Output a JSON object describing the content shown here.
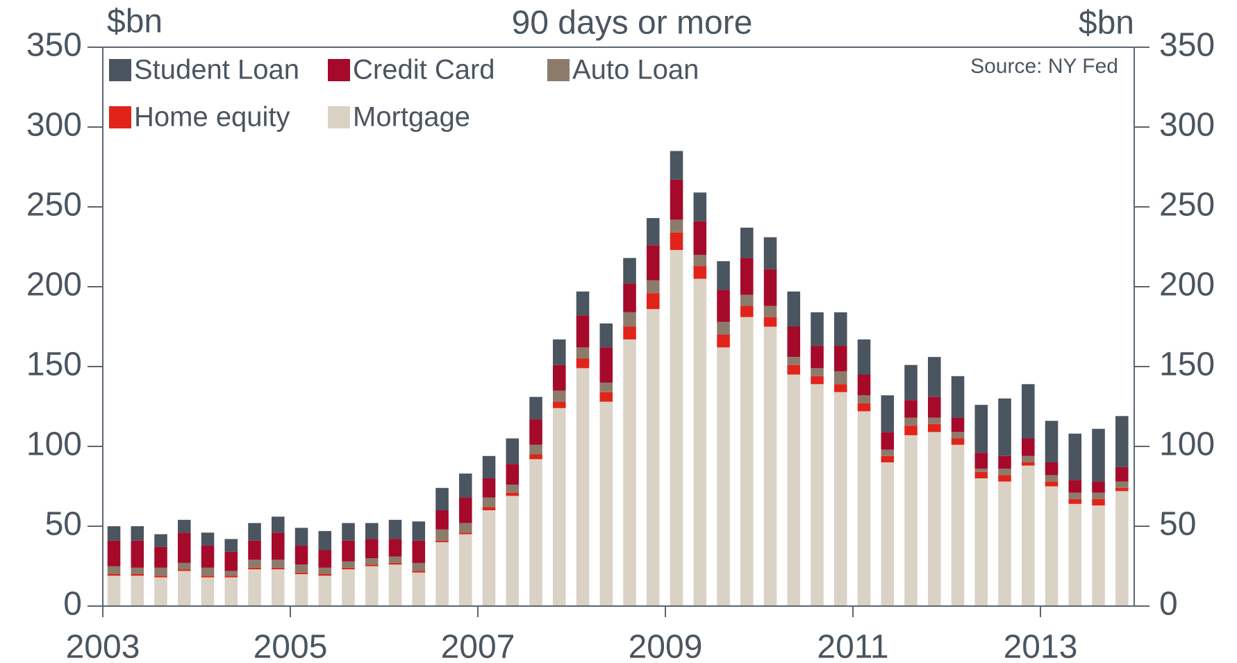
{
  "chart_data": {
    "type": "stacked_bar",
    "title": "90 days or more",
    "y_label": "$bn",
    "y2_label": "$bn",
    "source": "Source: NY Fed",
    "categories": [
      "2003",
      null,
      null,
      null,
      null,
      null,
      null,
      null,
      "2005",
      null,
      null,
      null,
      null,
      null,
      null,
      null,
      "2007",
      null,
      null,
      null,
      null,
      null,
      null,
      null,
      "2009",
      null,
      null,
      null,
      null,
      null,
      null,
      null,
      "2011",
      null,
      null,
      null,
      null,
      null,
      null,
      null,
      "2013",
      null,
      null,
      null
    ],
    "series": [
      {
        "name": "Student Loan",
        "color": "#4a5560",
        "values": [
          9,
          9,
          8,
          8,
          8,
          8,
          11,
          10,
          11,
          12,
          11,
          10,
          12,
          12,
          14,
          15,
          14,
          16,
          14,
          16,
          15,
          15,
          16,
          17,
          18,
          18,
          18,
          19,
          20,
          22,
          21,
          21,
          22,
          23,
          22,
          25,
          26,
          30,
          36,
          34,
          26,
          29,
          33,
          32
        ]
      },
      {
        "name": "Credit Card",
        "color": "#a50a2a",
        "values": [
          16,
          17,
          13,
          19,
          14,
          12,
          12,
          17,
          12,
          11,
          13,
          12,
          11,
          14,
          12,
          16,
          12,
          13,
          16,
          16,
          20,
          22,
          18,
          22,
          25,
          21,
          20,
          23,
          23,
          19,
          14,
          16,
          13,
          11,
          11,
          13,
          9,
          10,
          8,
          11,
          8,
          8,
          7,
          9
        ]
      },
      {
        "name": "Auto Loan",
        "color": "#8c7b6b",
        "values": [
          5,
          4,
          5,
          4,
          5,
          3,
          5,
          5,
          5,
          4,
          4,
          4,
          4,
          5,
          7,
          6,
          6,
          5,
          6,
          7,
          7,
          6,
          9,
          8,
          8,
          7,
          8,
          7,
          7,
          5,
          5,
          8,
          5,
          4,
          5,
          4,
          4,
          2,
          4,
          4,
          4,
          4,
          4,
          4
        ]
      },
      {
        "name": "Home equity",
        "color": "#e2231a",
        "values": [
          1,
          1,
          1,
          1,
          1,
          1,
          1,
          1,
          1,
          1,
          1,
          1,
          1,
          1,
          1,
          1,
          2,
          2,
          3,
          4,
          6,
          6,
          8,
          10,
          11,
          8,
          8,
          7,
          6,
          6,
          5,
          5,
          5,
          4,
          6,
          5,
          4,
          4,
          4,
          2,
          3,
          3,
          4,
          2
        ]
      },
      {
        "name": "Mortgage",
        "color": "#d9d2c5",
        "values": [
          19,
          19,
          18,
          22,
          18,
          18,
          23,
          23,
          20,
          19,
          23,
          25,
          26,
          21,
          40,
          45,
          60,
          69,
          92,
          124,
          149,
          128,
          167,
          186,
          223,
          205,
          162,
          181,
          175,
          145,
          139,
          134,
          122,
          90,
          107,
          109,
          101,
          80,
          78,
          88,
          75,
          64,
          63,
          72
        ]
      }
    ],
    "ylim": [
      0,
      350
    ],
    "yticks": [
      0,
      50,
      100,
      150,
      200,
      250,
      300,
      350
    ],
    "y2lim": [
      0,
      350
    ],
    "y2ticks": [
      0,
      50,
      100,
      150,
      200,
      250,
      300,
      350
    ]
  }
}
